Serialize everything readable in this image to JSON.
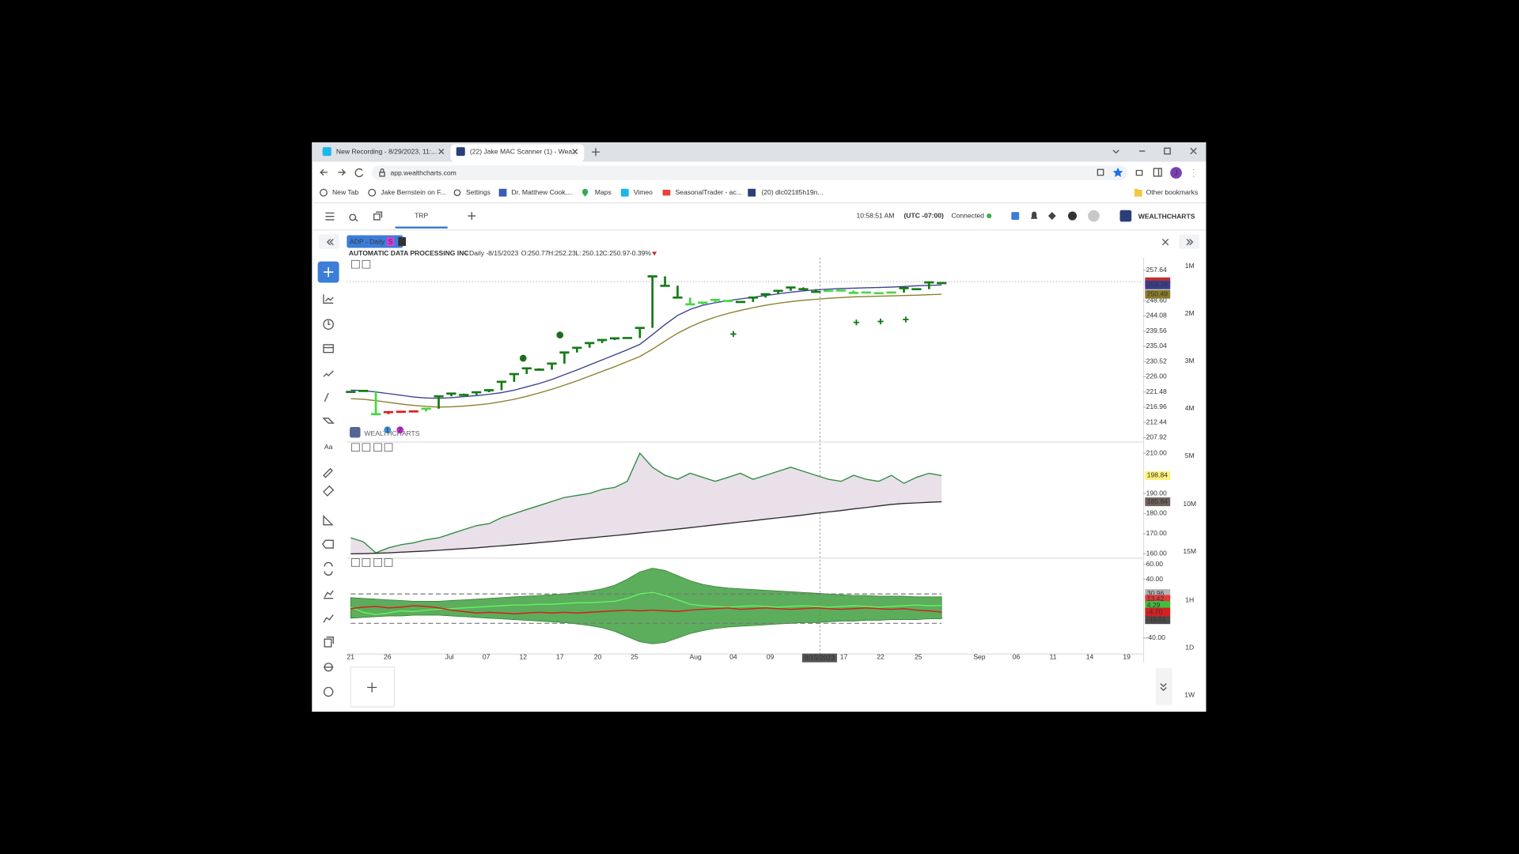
{
  "browser": {
    "tabs": [
      "New Recording - 8/29/2023, 11:...",
      "(22) Jake MAC Scanner (1) - Wea..."
    ],
    "address": "app.wealthcharts.com",
    "bookmarks": [
      "New Tab",
      "Jake Bernstein on F...",
      "Settings",
      "Dr. Matthew Cook,...",
      "Maps",
      "Vimeo",
      "SeasonalTrader - ac...",
      "(20) dlc021tl5h19n..."
    ],
    "other_bookmarks": "Other bookmarks",
    "profile_initial": "J"
  },
  "app": {
    "tab": "TRP",
    "time": "10:58:51 AM",
    "timezone": "(UTC -07:00)",
    "status": "Connected",
    "logo": "WEALTHCHARTS",
    "tool_text": "Aa",
    "timeframes": [
      "1M",
      "2M",
      "3M",
      "4M",
      "5M",
      "10M",
      "15M",
      "1H",
      "1D",
      "1W"
    ]
  },
  "header": {
    "symbol_tag": "ADP - Daily",
    "tag_s": "S",
    "tag_t": "T",
    "interval": "- Daily -",
    "date": "8/15/2023",
    "ohlc": [
      {
        "label": "O:",
        "value": "250.77"
      },
      {
        "label": "H:",
        "value": "252.23"
      },
      {
        "label": "L:",
        "value": "250.12"
      },
      {
        "label": "C:",
        "value": "250.97"
      }
    ],
    "change": "-0.39%",
    "watermark": "WEALTHCHARTS"
  },
  "x_axis": {
    "labels": [
      "21",
      "26",
      "Jul",
      "07",
      "12",
      "17",
      "20",
      "25",
      "Aug",
      "04",
      "09",
      "17",
      "22",
      "25",
      "Sep",
      "06",
      "11",
      "14",
      "19"
    ]
  },
  "signals": [
    {
      "text": "2",
      "color": "#1d7a1d"
    },
    {
      "text": "5",
      "color": "#1d7a1d"
    },
    {
      "text": "1",
      "color": "#3b8fd9"
    },
    {
      "text": "2",
      "color": "#c02ad0"
    }
  ],
  "chart_data": [
    {
      "type": "step",
      "title": "AUTOMATIC DATA PROCESSING INC",
      "ylim": [
        207.06,
        261.38
      ],
      "yticks": [
        257.64,
        {
          "value": 248.6,
          "label": "248.60"
        },
        244.08,
        239.56,
        235.04,
        230.52,
        {
          "value": 226,
          "label": "226.00"
        },
        221.48,
        216.96,
        212.44,
        207.92
      ],
      "values": [
        221.5,
        221.8,
        214.9,
        215.5,
        215.6,
        215.7,
        216.5,
        220.2,
        221.0,
        220.6,
        221.4,
        222.0,
        224.5,
        226.8,
        228.5,
        228.1,
        229.9,
        233.2,
        234.6,
        236.0,
        236.9,
        237.4,
        237.5,
        240.5,
        255.8,
        253.0,
        249.5,
        247.5,
        248.0,
        248.8,
        248.5,
        248.2,
        249.5,
        250.5,
        251.5,
        252.5,
        252.0,
        251.2,
        251.5,
        251.6,
        250.9,
        251.0,
        250.8,
        251.0,
        252.3,
        252.0,
        254.0,
        253.8
      ],
      "colors": [
        "#157a15",
        "#157a15",
        "#44d944",
        "#e01b1b",
        "#e01b1b",
        "#e01b1b",
        "#44d944",
        "#157a15",
        "#157a15",
        "#157a15",
        "#157a15",
        "#157a15",
        "#157a15",
        "#157a15",
        "#157a15",
        "#157a15",
        "#157a15",
        "#157a15",
        "#157a15",
        "#157a15",
        "#157a15",
        "#157a15",
        "#157a15",
        "#157a15",
        "#157a15",
        "#157a15",
        "#157a15",
        "#44d944",
        "#44d944",
        "#44d944",
        "#44d944",
        "#157a15",
        "#157a15",
        "#157a15",
        "#157a15",
        "#157a15",
        "#157a15",
        "#157a15",
        "#44d944",
        "#44d944",
        "#44d944",
        "#44d944",
        "#44d944",
        "#44d944",
        "#157a15",
        "#157a15",
        "#157a15",
        "#157a15"
      ],
      "overlays": [
        {
          "color": "#3b3f8f",
          "values": [
            222.0,
            221.9,
            221.5,
            221.0,
            220.5,
            220.0,
            219.7,
            219.6,
            219.8,
            220.1,
            220.4,
            220.8,
            221.3,
            222.0,
            223.0,
            224.0,
            225.2,
            226.6,
            228.0,
            229.5,
            231.0,
            232.5,
            234.0,
            235.6,
            238.5,
            241.5,
            244.2,
            246.0,
            247.2,
            248.0,
            248.6,
            249.1,
            249.6,
            250.1,
            250.6,
            251.1,
            251.5,
            251.8,
            252.0,
            252.2,
            252.3,
            252.4,
            252.5,
            252.6,
            252.8,
            253.0,
            253.1,
            253.26
          ]
        },
        {
          "color": "#8a7d2a",
          "values": [
            219.5,
            219.3,
            218.9,
            218.4,
            217.9,
            217.5,
            217.2,
            217.0,
            217.1,
            217.3,
            217.6,
            218.0,
            218.6,
            219.3,
            220.2,
            221.2,
            222.3,
            223.5,
            224.8,
            226.2,
            227.6,
            229.0,
            230.5,
            232.0,
            234.2,
            236.6,
            238.9,
            240.8,
            242.4,
            243.7,
            244.8,
            245.7,
            246.5,
            247.2,
            247.8,
            248.3,
            248.7,
            249.0,
            249.3,
            249.5,
            249.7,
            249.8,
            249.9,
            250.0,
            250.1,
            250.2,
            250.35,
            250.49
          ]
        }
      ]
    },
    {
      "type": "area",
      "ylim": [
        158.56,
        214.8
      ],
      "yticks": [
        {
          "value": 210,
          "label": "210.00"
        },
        {
          "value": 190,
          "label": "190.00"
        },
        {
          "value": 180,
          "label": "180.00"
        },
        {
          "value": 170,
          "label": "170.00"
        },
        {
          "value": 160,
          "label": "160.00"
        }
      ],
      "fill": "#e9e0ea",
      "series": [
        {
          "color": "#2e8b3e",
          "label_color": "#fff27a",
          "values": [
            168,
            166,
            160.5,
            163,
            164.5,
            165.5,
            167,
            168,
            170,
            172,
            174,
            175,
            178,
            180,
            182,
            184,
            186,
            188,
            189,
            190,
            192,
            193,
            196,
            210,
            203,
            199,
            197,
            200,
            198,
            196,
            198,
            200,
            197,
            199,
            201,
            203,
            201,
            199,
            197,
            196,
            199,
            197,
            196,
            199,
            195,
            198,
            200,
            198.84
          ]
        },
        {
          "color": "#2b2b2b",
          "label_color": "#6e625c",
          "values": [
            160.0,
            160.1,
            160.3,
            160.5,
            160.8,
            161.1,
            161.4,
            161.8,
            162.2,
            162.6,
            163.0,
            163.5,
            164.0,
            164.5,
            165.0,
            165.6,
            166.1,
            166.7,
            167.3,
            167.9,
            168.5,
            169.1,
            169.7,
            170.4,
            171.0,
            171.7,
            172.3,
            173.0,
            173.7,
            174.4,
            175.1,
            175.8,
            176.5,
            177.2,
            177.9,
            178.6,
            179.3,
            180.1,
            180.8,
            181.5,
            182.3,
            183.0,
            183.8,
            184.5,
            185.0,
            185.3,
            185.6,
            185.84
          ]
        }
      ]
    },
    {
      "type": "band",
      "ylim": [
        -61.1,
        66.6
      ],
      "yticks": [
        {
          "value": 60,
          "label": "60.00"
        },
        {
          "value": 40,
          "label": "40.00"
        },
        {
          "value": -40,
          "label": "-40.00"
        }
      ],
      "levels": [
        20,
        -20
      ],
      "band": {
        "color": "#3f9f3f",
        "upper": [
          15,
          14,
          13,
          12,
          11,
          10,
          10,
          10,
          11,
          12,
          13,
          14,
          15,
          16,
          17,
          18,
          19,
          20,
          22,
          24,
          27,
          32,
          40,
          50,
          55,
          52,
          45,
          38,
          33,
          30,
          28,
          27,
          26,
          25,
          24,
          23,
          22,
          21,
          20,
          19,
          18,
          18,
          17,
          17,
          17,
          16,
          16,
          16
        ],
        "lower": [
          -13,
          -12,
          -11,
          -10,
          -10,
          -9,
          -9,
          -9,
          -10,
          -11,
          -12,
          -13,
          -14,
          -15,
          -16,
          -17,
          -18,
          -19,
          -21,
          -23,
          -26,
          -31,
          -38,
          -45,
          -48,
          -46,
          -40,
          -34,
          -30,
          -27,
          -25,
          -24,
          -23,
          -22,
          -21,
          -20,
          -19,
          -19,
          -18,
          -17,
          -17,
          -16,
          -16,
          -15,
          -15,
          -15,
          -14,
          -14
        ]
      },
      "series": [
        {
          "color": "#63f063",
          "values": [
            2,
            -5,
            -8,
            -6,
            -3,
            -4,
            -2,
            -1,
            0,
            1,
            2,
            3,
            4,
            5,
            5,
            6,
            6,
            7,
            8,
            8,
            9,
            10,
            14,
            20,
            22,
            18,
            12,
            6,
            4,
            3,
            2,
            3,
            4,
            3,
            2,
            3,
            4,
            3,
            2,
            3,
            4,
            3,
            2,
            3,
            4,
            5,
            4,
            4.29
          ]
        },
        {
          "color": "#d42020",
          "last_label": "-4.70",
          "values": [
            0,
            2,
            3,
            1,
            2,
            4,
            3,
            1,
            -2,
            -4,
            -6,
            -5,
            -6,
            -7,
            -6,
            -5,
            -6,
            -5,
            -6,
            -5,
            -4,
            -3,
            -2,
            -3,
            -2,
            -3,
            -4,
            -2,
            -1,
            0,
            1,
            -1,
            0,
            1,
            0,
            -1,
            0,
            1,
            0,
            -1,
            0,
            1,
            0,
            -1,
            0,
            -2,
            -3,
            -4.7
          ]
        }
      ],
      "readouts": [
        {
          "value": 30.96,
          "color": "#b5b5b5"
        },
        {
          "value": 13.42,
          "color": "#e33b3b"
        },
        {
          "value": -15.51,
          "color": "#4a4a4a"
        }
      ]
    }
  ]
}
